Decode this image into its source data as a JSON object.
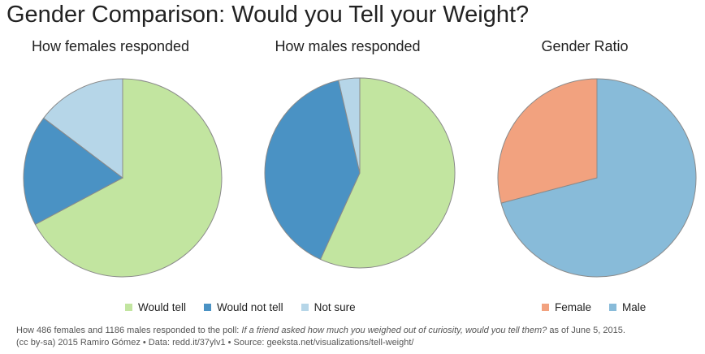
{
  "title": "Gender Comparison: Would you Tell your Weight?",
  "colors": {
    "would_tell": "#c2e5a0",
    "would_not_tell": "#4a92c4",
    "not_sure": "#b6d6e8",
    "female": "#f2a27f",
    "male": "#88bbd9",
    "edge": "#8a8a8a"
  },
  "legends": {
    "response": [
      {
        "label": "Would tell",
        "color": "#c2e5a0"
      },
      {
        "label": "Would not tell",
        "color": "#4a92c4"
      },
      {
        "label": "Not sure",
        "color": "#b6d6e8"
      }
    ],
    "gender": [
      {
        "label": "Female",
        "color": "#f2a27f"
      },
      {
        "label": "Male",
        "color": "#88bbd9"
      }
    ]
  },
  "caption": {
    "line1_pre": "How 486 females and 1186 males responded to the poll: ",
    "line1_question": "If a friend asked how much you weighed out of curiosity, would you tell them?",
    "line1_post": " as of June 5, 2015.",
    "line2": "(cc by-sa) 2015 Ramiro Gómez • Data: redd.it/37ylv1 • Source: geeksta.net/visualizations/tell-weight/"
  },
  "chart_data": [
    {
      "type": "pie",
      "title": "How females responded",
      "slices": [
        {
          "label": "Would tell",
          "value": 0.672,
          "color": "#c2e5a0"
        },
        {
          "label": "Would not tell",
          "value": 0.181,
          "color": "#4a92c4"
        },
        {
          "label": "Not sure",
          "value": 0.147,
          "color": "#b6d6e8"
        }
      ]
    },
    {
      "type": "pie",
      "title": "How males responded",
      "slices": [
        {
          "label": "Would tell",
          "value": 0.568,
          "color": "#c2e5a0"
        },
        {
          "label": "Would not tell",
          "value": 0.396,
          "color": "#4a92c4"
        },
        {
          "label": "Not sure",
          "value": 0.036,
          "color": "#b6d6e8"
        }
      ]
    },
    {
      "type": "pie",
      "title": "Gender Ratio",
      "slices": [
        {
          "label": "Male",
          "value": 0.709,
          "color": "#88bbd9"
        },
        {
          "label": "Female",
          "value": 0.291,
          "color": "#f2a27f"
        }
      ]
    }
  ]
}
